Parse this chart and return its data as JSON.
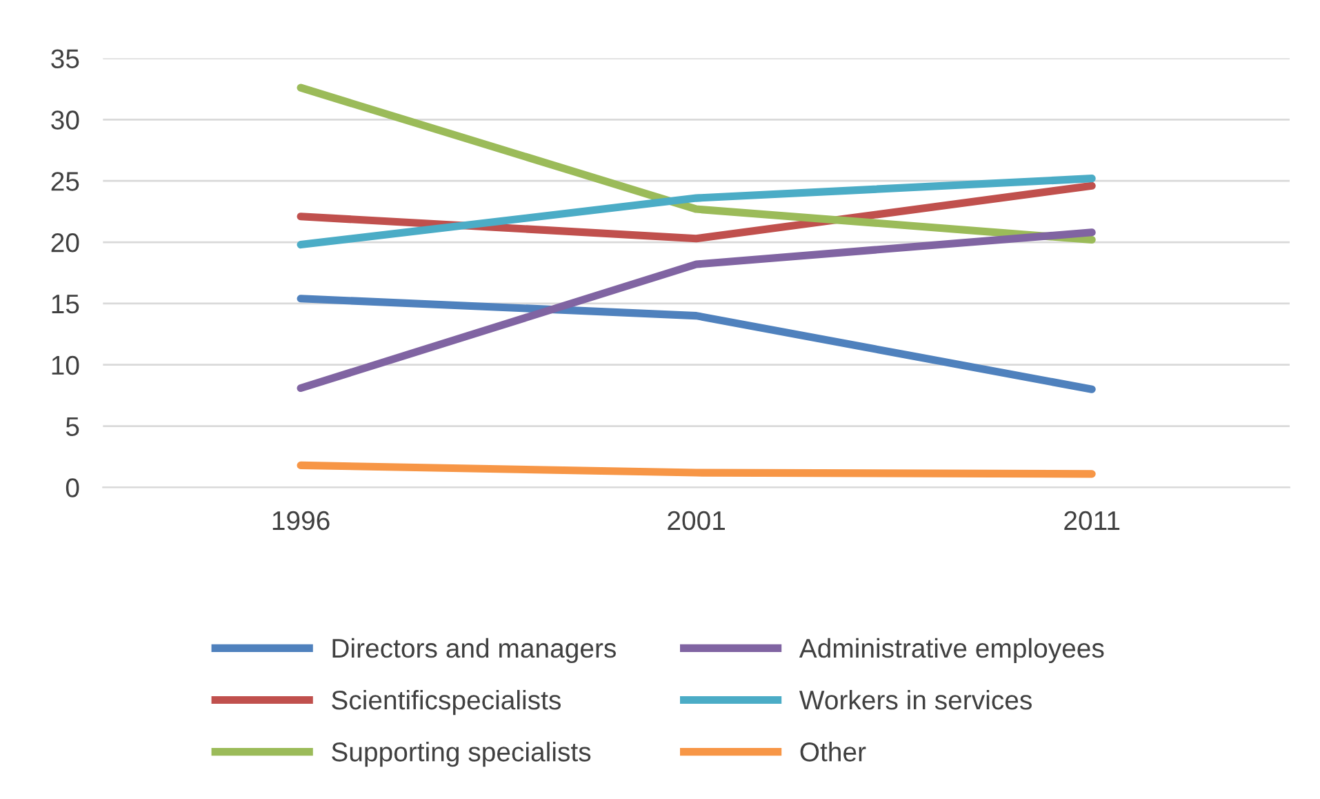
{
  "chart_data": {
    "type": "line",
    "categories": [
      "1996",
      "2001",
      "2011"
    ],
    "series": [
      {
        "name": "Directors and managers",
        "color": "#4f81bd",
        "values": [
          15.4,
          14.0,
          8.0
        ]
      },
      {
        "name": "Scientificspecialists",
        "color": "#c0504d",
        "values": [
          22.1,
          20.3,
          24.6
        ]
      },
      {
        "name": "Supporting specialists",
        "color": "#9bbb59",
        "values": [
          32.6,
          22.7,
          20.2
        ]
      },
      {
        "name": "Administrative employees",
        "color": "#8064a2",
        "values": [
          8.1,
          18.2,
          20.8
        ]
      },
      {
        "name": "Workers in services",
        "color": "#4bacc6",
        "values": [
          19.8,
          23.6,
          25.2
        ]
      },
      {
        "name": "Other",
        "color": "#f79646",
        "values": [
          1.8,
          1.2,
          1.1
        ]
      }
    ],
    "ylim": [
      0,
      35
    ],
    "yticks": [
      0,
      5,
      10,
      15,
      20,
      25,
      30,
      35
    ],
    "grid": "y",
    "legend": "bottom",
    "marker": "none",
    "line_style": "solid"
  }
}
